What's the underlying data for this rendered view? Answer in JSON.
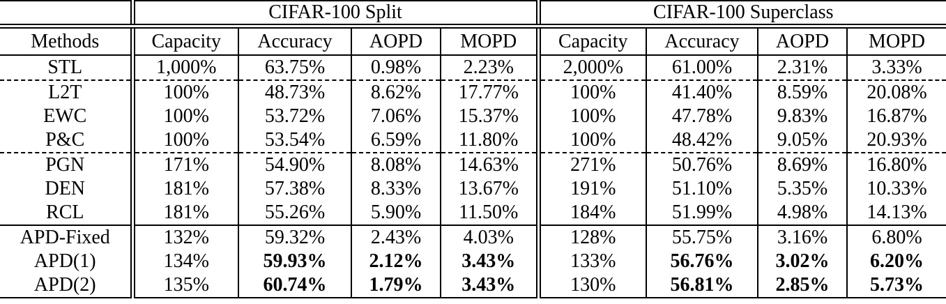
{
  "table": {
    "groups": [
      {
        "label": "CIFAR-100 Split"
      },
      {
        "label": "CIFAR-100 Superclass"
      }
    ],
    "methods_header": "Methods",
    "columns": [
      "Capacity",
      "Accuracy",
      "AOPD",
      "MOPD",
      "Capacity",
      "Accuracy",
      "AOPD",
      "MOPD"
    ],
    "rows": [
      {
        "method": "STL",
        "values": [
          "1,000%",
          "63.75%",
          "0.98%",
          "2.23%",
          "2,000%",
          "61.00%",
          "2.31%",
          "3.33%"
        ],
        "bold": [],
        "rule_below": "dashed"
      },
      {
        "method": "L2T",
        "values": [
          "100%",
          "48.73%",
          "8.62%",
          "17.77%",
          "100%",
          "41.40%",
          "8.59%",
          "20.08%"
        ],
        "bold": [],
        "rule_below": "none"
      },
      {
        "method": "EWC",
        "values": [
          "100%",
          "53.72%",
          "7.06%",
          "15.37%",
          "100%",
          "47.78%",
          "9.83%",
          "16.87%"
        ],
        "bold": [],
        "rule_below": "none"
      },
      {
        "method": "P&C",
        "values": [
          "100%",
          "53.54%",
          "6.59%",
          "11.80%",
          "100%",
          "48.42%",
          "9.05%",
          "20.93%"
        ],
        "bold": [],
        "rule_below": "dashed"
      },
      {
        "method": "PGN",
        "values": [
          "171%",
          "54.90%",
          "8.08%",
          "14.63%",
          "271%",
          "50.76%",
          "8.69%",
          "16.80%"
        ],
        "bold": [],
        "rule_below": "none"
      },
      {
        "method": "DEN",
        "values": [
          "181%",
          "57.38%",
          "8.33%",
          "13.67%",
          "191%",
          "51.10%",
          "5.35%",
          "10.33%"
        ],
        "bold": [],
        "rule_below": "none"
      },
      {
        "method": "RCL",
        "values": [
          "181%",
          "55.26%",
          "5.90%",
          "11.50%",
          "184%",
          "51.99%",
          "4.98%",
          "14.13%"
        ],
        "bold": [],
        "rule_below": "solid"
      },
      {
        "method": "APD-Fixed",
        "values": [
          "132%",
          "59.32%",
          "2.43%",
          "4.03%",
          "128%",
          "55.75%",
          "3.16%",
          "6.80%"
        ],
        "bold": [],
        "rule_below": "none"
      },
      {
        "method": "APD(1)",
        "values": [
          "134%",
          "59.93%",
          "2.12%",
          "3.43%",
          "133%",
          "56.76%",
          "3.02%",
          "6.20%"
        ],
        "bold": [
          1,
          2,
          3,
          5,
          6,
          7
        ],
        "rule_below": "none"
      },
      {
        "method": "APD(2)",
        "values": [
          "135%",
          "60.74%",
          "1.79%",
          "3.43%",
          "130%",
          "56.81%",
          "2.85%",
          "5.73%"
        ],
        "bold": [
          1,
          2,
          3,
          5,
          6,
          7
        ],
        "rule_below": "none"
      }
    ]
  }
}
